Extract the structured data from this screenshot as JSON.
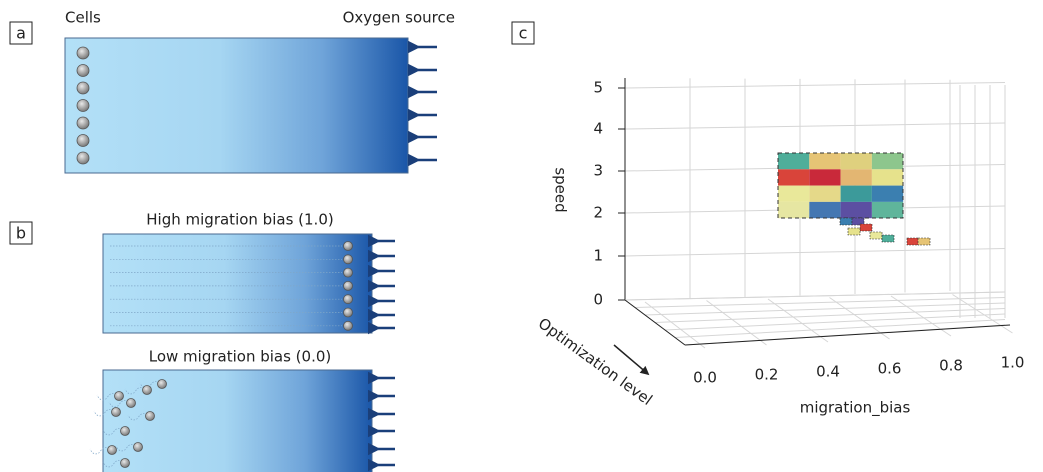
{
  "panel_a": {
    "label": "a",
    "left_text": "Cells",
    "right_text": "Oxygen source"
  },
  "panel_b": {
    "label": "b",
    "top_title": "High migration bias (1.0)",
    "bottom_title": "Low migration bias (0.0)"
  },
  "panel_c": {
    "label": "c",
    "z_axis_label": "speed",
    "x_axis_label": "migration_bias",
    "depth_axis_label": "Optimization level",
    "z_ticks": [
      "0",
      "1",
      "2",
      "3",
      "4",
      "5"
    ],
    "x_ticks": [
      "0.0",
      "0.2",
      "0.4",
      "0.6",
      "0.8",
      "1.0"
    ]
  }
}
